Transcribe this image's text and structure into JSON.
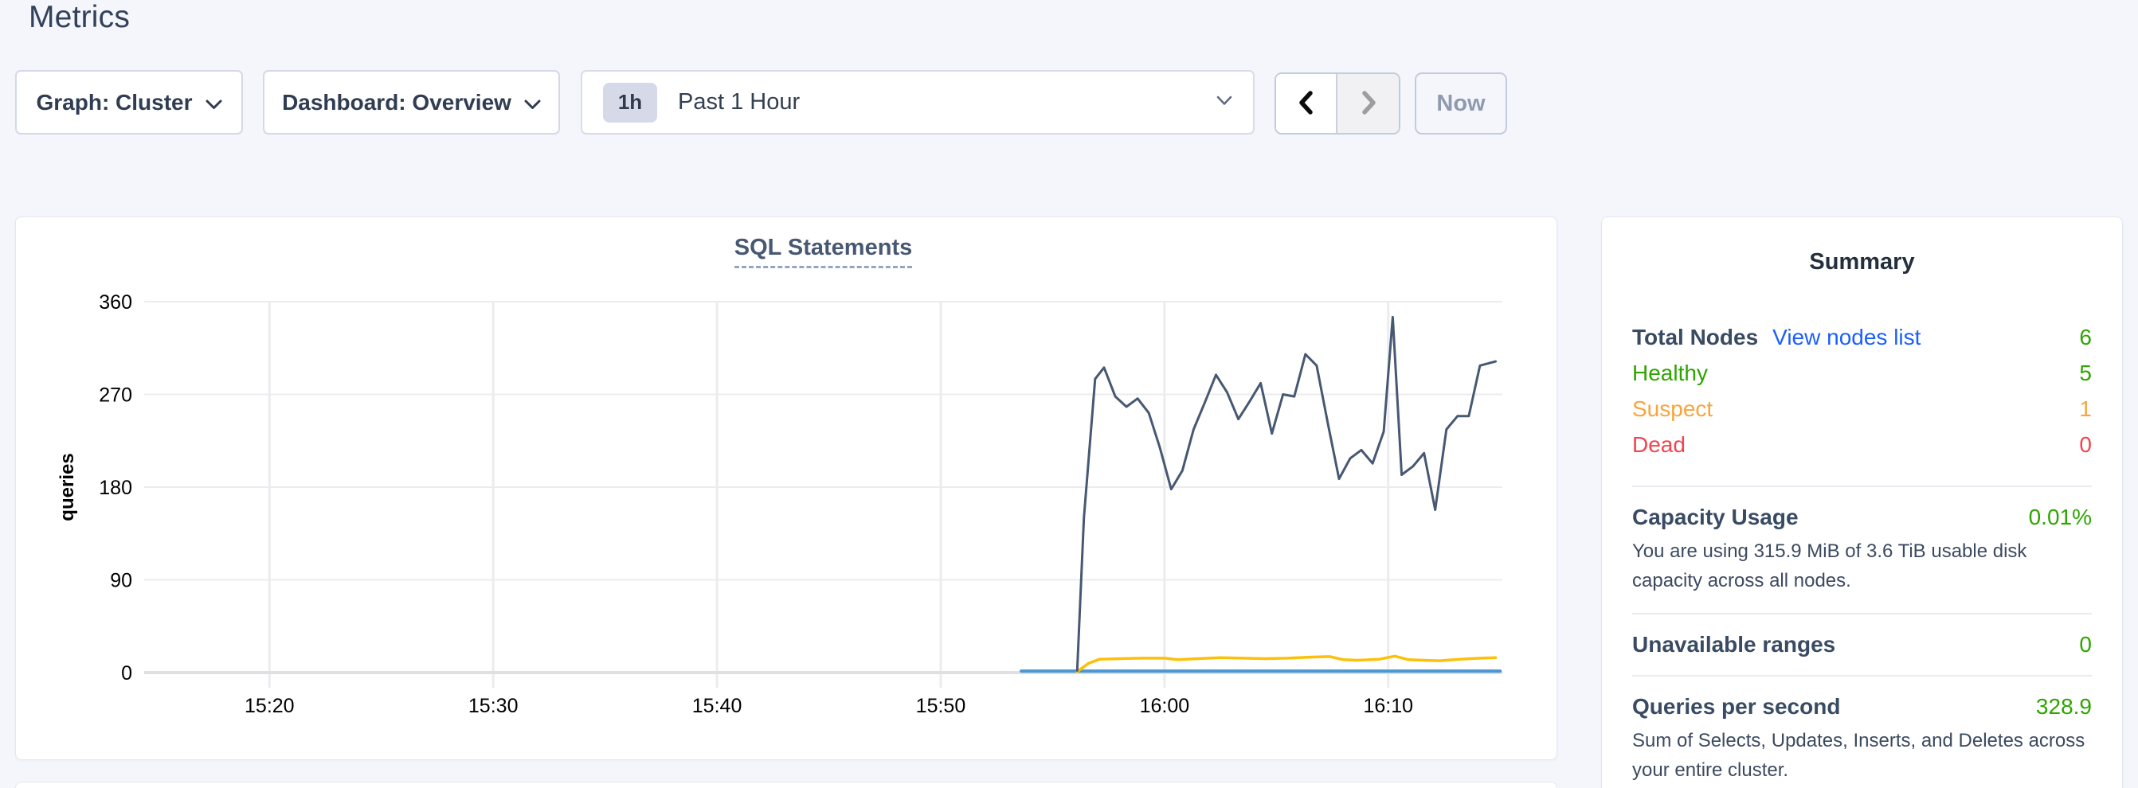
{
  "page": {
    "title": "Metrics"
  },
  "controls": {
    "graph_dropdown_label": "Graph: Cluster",
    "dashboard_dropdown_label": "Dashboard: Overview",
    "time_range": {
      "badge": "1h",
      "label": "Past 1 Hour"
    },
    "now_button_label": "Now"
  },
  "summary": {
    "title": "Summary",
    "nodes": {
      "total_label": "Total Nodes",
      "link_label": "View nodes list",
      "total_value": "6",
      "rows": [
        {
          "label": "Healthy",
          "value": "5",
          "color": "#2ea500"
        },
        {
          "label": "Suspect",
          "value": "1",
          "color": "#f9a43c"
        },
        {
          "label": "Dead",
          "value": "0",
          "color": "#f3434e"
        }
      ]
    },
    "capacity": {
      "label": "Capacity Usage",
      "value": "0.01%",
      "description": "You are using 315.9 MiB of 3.6 TiB usable disk capacity across all nodes."
    },
    "unavailable": {
      "label": "Unavailable ranges",
      "value": "0"
    },
    "qps": {
      "label": "Queries per second",
      "value": "328.9",
      "description": "Sum of Selects, Updates, Inserts, and Deletes across your entire cluster."
    }
  },
  "colors": {
    "value_green": "#2ea500",
    "link_blue": "#1a5eff",
    "suspect_orange": "#f9a43c",
    "dead_red": "#f3434e"
  },
  "chart_data": {
    "type": "line",
    "title": "SQL Statements",
    "ylabel": "queries",
    "x_unit": "minutes after 15:00",
    "x_domain": [
      14.4,
      75.1
    ],
    "ylim": [
      0,
      360
    ],
    "grid": true,
    "legend": "none visible",
    "x_ticks": [
      {
        "t": 20,
        "label": "15:20"
      },
      {
        "t": 30,
        "label": "15:30"
      },
      {
        "t": 40,
        "label": "15:40"
      },
      {
        "t": 50,
        "label": "15:50"
      },
      {
        "t": 60,
        "label": "16:00"
      },
      {
        "t": 70,
        "label": "16:10"
      }
    ],
    "y_ticks": [
      0,
      90,
      180,
      270,
      360
    ],
    "series": [
      {
        "name": "series-light-blue",
        "color": "#4a97d2",
        "width": 4,
        "points": [
          [
            53.6,
            1.5
          ],
          [
            75.0,
            1.5
          ]
        ]
      },
      {
        "name": "series-yellow",
        "color": "#fdc008",
        "width": 3.5,
        "points": [
          [
            56.1,
            1
          ],
          [
            56.6,
            9
          ],
          [
            57.1,
            13
          ],
          [
            58.0,
            13.5
          ],
          [
            59.0,
            14
          ],
          [
            60.0,
            14
          ],
          [
            60.6,
            12.5
          ],
          [
            61.5,
            13.5
          ],
          [
            62.5,
            14.5
          ],
          [
            63.5,
            14
          ],
          [
            64.5,
            13.5
          ],
          [
            65.5,
            14
          ],
          [
            66.5,
            15
          ],
          [
            67.4,
            15.5
          ],
          [
            68.0,
            12.5
          ],
          [
            68.6,
            12
          ],
          [
            69.6,
            13
          ],
          [
            70.3,
            16
          ],
          [
            70.9,
            12.5
          ],
          [
            71.6,
            12
          ],
          [
            72.3,
            11.5
          ],
          [
            73.2,
            13
          ],
          [
            74.1,
            14
          ],
          [
            74.8,
            14.5
          ]
        ]
      },
      {
        "name": "series-dark-slate",
        "color": "#475872",
        "width": 3,
        "points": [
          [
            56.1,
            2
          ],
          [
            56.4,
            150
          ],
          [
            56.9,
            285
          ],
          [
            57.3,
            296
          ],
          [
            57.8,
            268
          ],
          [
            58.3,
            258
          ],
          [
            58.8,
            266
          ],
          [
            59.3,
            252
          ],
          [
            59.8,
            218
          ],
          [
            60.3,
            178
          ],
          [
            60.8,
            196
          ],
          [
            61.3,
            236
          ],
          [
            61.8,
            262
          ],
          [
            62.3,
            289
          ],
          [
            62.8,
            272
          ],
          [
            63.3,
            246
          ],
          [
            63.8,
            263
          ],
          [
            64.3,
            281
          ],
          [
            64.8,
            232
          ],
          [
            65.3,
            270
          ],
          [
            65.8,
            268
          ],
          [
            66.3,
            309
          ],
          [
            66.8,
            298
          ],
          [
            67.3,
            242
          ],
          [
            67.8,
            188
          ],
          [
            68.3,
            208
          ],
          [
            68.8,
            216
          ],
          [
            69.3,
            203
          ],
          [
            69.8,
            234
          ],
          [
            70.2,
            345
          ],
          [
            70.6,
            192
          ],
          [
            71.1,
            200
          ],
          [
            71.6,
            213
          ],
          [
            72.1,
            158
          ],
          [
            72.6,
            236
          ],
          [
            73.1,
            249
          ],
          [
            73.6,
            249
          ],
          [
            74.1,
            298
          ],
          [
            74.8,
            302
          ]
        ]
      }
    ]
  }
}
